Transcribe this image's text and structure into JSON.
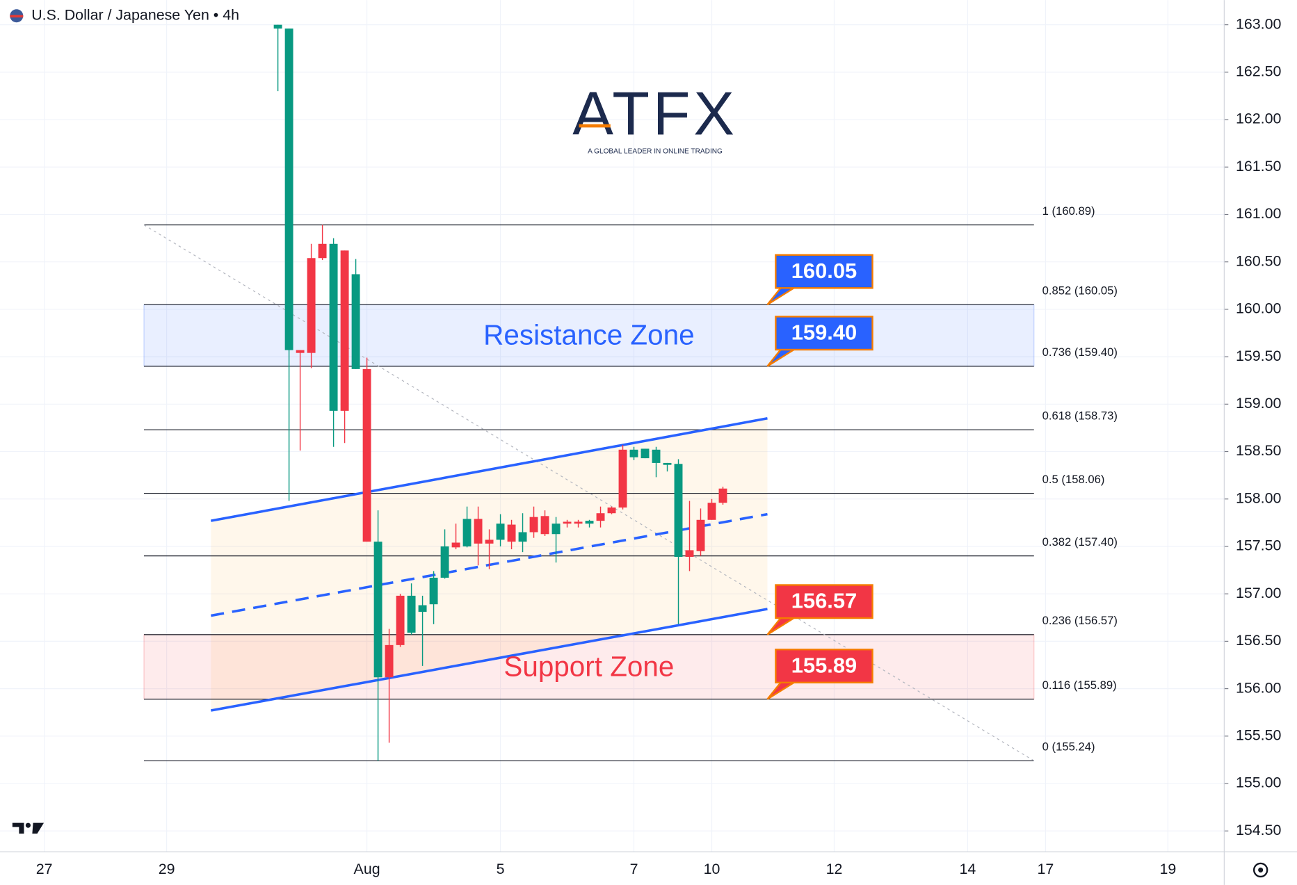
{
  "chart_data": {
    "type": "candlestick",
    "title": "U.S. Dollar / Japanese Yen • 4h",
    "logo": {
      "name": "ATFX",
      "tagline": "A GLOBAL LEADER IN ONLINE TRADING"
    },
    "up_color": "#089981",
    "down_color": "#f23645",
    "x": [
      0,
      1,
      2,
      3,
      4,
      5,
      6,
      7,
      8,
      9,
      10,
      11,
      12,
      13,
      14,
      15,
      16,
      17,
      18,
      19,
      20,
      21,
      22,
      23,
      24,
      25,
      26,
      27,
      28,
      29,
      30,
      31,
      32,
      33,
      34,
      35,
      36,
      37,
      38,
      39,
      40
    ],
    "open": [
      162.96,
      159.57,
      159.57,
      160.54,
      160.69,
      158.93,
      160.62,
      159.37,
      159.37,
      156.12,
      156.46,
      156.98,
      156.59,
      156.81,
      156.89,
      157.17,
      157.54,
      157.5,
      157.79,
      157.57,
      157.57,
      157.73,
      157.55,
      157.81,
      157.82,
      157.63,
      157.76,
      157.76,
      157.74,
      157.85,
      157.91,
      158.52,
      158.44,
      158.43,
      158.38,
      158.36,
      157.39,
      157.46,
      157.78,
      157.96,
      158.11
    ],
    "high": [
      163.0,
      162.96,
      159.57,
      160.69,
      160.89,
      160.75,
      160.62,
      160.53,
      159.49,
      157.88,
      156.63,
      157.0,
      157.11,
      156.98,
      157.24,
      157.68,
      157.74,
      157.92,
      157.92,
      157.68,
      157.84,
      157.78,
      157.85,
      157.92,
      157.88,
      157.81,
      157.78,
      157.78,
      157.78,
      157.92,
      157.92,
      158.57,
      158.55,
      158.53,
      158.55,
      158.38,
      158.42,
      157.98,
      157.9,
      158.0,
      158.13
    ],
    "low": [
      162.3,
      157.98,
      158.51,
      159.38,
      160.52,
      158.55,
      158.59,
      159.37,
      157.55,
      155.24,
      155.43,
      156.44,
      156.57,
      156.24,
      156.68,
      157.16,
      157.47,
      157.49,
      157.3,
      157.26,
      157.5,
      157.47,
      157.44,
      157.59,
      157.61,
      157.33,
      157.7,
      157.7,
      157.7,
      157.7,
      157.84,
      157.89,
      158.41,
      158.43,
      158.23,
      158.29,
      156.68,
      157.24,
      157.4,
      157.78,
      157.94
    ],
    "close": [
      163.0,
      162.96,
      159.54,
      159.54,
      160.54,
      160.69,
      158.93,
      160.37,
      157.55,
      157.55,
      156.12,
      156.46,
      156.98,
      156.88,
      157.17,
      157.5,
      157.49,
      157.79,
      157.53,
      157.53,
      157.74,
      157.55,
      157.65,
      157.65,
      157.63,
      157.74,
      157.74,
      157.74,
      157.77,
      157.77,
      157.85,
      157.91,
      158.52,
      158.53,
      158.52,
      158.38,
      158.37,
      157.39,
      157.45,
      157.78,
      157.96
    ],
    "xlim": [
      -24.98,
      85.06
    ],
    "xticks": [
      {
        "value": -21,
        "label": "27"
      },
      {
        "value": -10,
        "label": "29"
      },
      {
        "value": 8,
        "label": "Aug"
      },
      {
        "value": 20,
        "label": "5"
      },
      {
        "value": 32,
        "label": "7"
      },
      {
        "value": 39,
        "label": "10"
      },
      {
        "value": 50,
        "label": "12"
      },
      {
        "value": 62,
        "label": "14"
      },
      {
        "value": 69,
        "label": "17"
      },
      {
        "value": 80,
        "label": "19"
      }
    ],
    "ylim": [
      154.28,
      163.26
    ],
    "yticks": [
      {
        "value": 154.5,
        "label": "154.50"
      },
      {
        "value": 155,
        "label": "155.00"
      },
      {
        "value": 155.5,
        "label": "155.50"
      },
      {
        "value": 156,
        "label": "156.00"
      },
      {
        "value": 156.5,
        "label": "156.50"
      },
      {
        "value": 157,
        "label": "157.00"
      },
      {
        "value": 157.5,
        "label": "157.50"
      },
      {
        "value": 158,
        "label": "158.00"
      },
      {
        "value": 158.5,
        "label": "158.50"
      },
      {
        "value": 159,
        "label": "159.00"
      },
      {
        "value": 159.5,
        "label": "159.50"
      },
      {
        "value": 160,
        "label": "160.00"
      },
      {
        "value": 160.5,
        "label": "160.50"
      },
      {
        "value": 161,
        "label": "161.00"
      },
      {
        "value": 161.5,
        "label": "161.50"
      },
      {
        "value": 162,
        "label": "162.00"
      },
      {
        "value": 162.5,
        "label": "162.50"
      },
      {
        "value": 163,
        "label": "163.00"
      }
    ],
    "grid": true,
    "fib_x": [
      -12.04,
      67.96
    ],
    "fib_levels": [
      {
        "value": 160.89,
        "label": "1 (160.89)"
      },
      {
        "value": 160.05,
        "label": "0.852 (160.05)"
      },
      {
        "value": 159.4,
        "label": "0.736 (159.40)"
      },
      {
        "value": 158.73,
        "label": "0.618 (158.73)"
      },
      {
        "value": 158.06,
        "label": "0.5 (158.06)"
      },
      {
        "value": 157.4,
        "label": "0.382 (157.40)"
      },
      {
        "value": 156.57,
        "label": "0.236 (156.57)"
      },
      {
        "value": 155.89,
        "label": "0.116 (155.89)"
      },
      {
        "value": 155.24,
        "label": "0 (155.24)"
      }
    ],
    "zones": [
      {
        "label": "Resistance Zone",
        "range": [
          159.4,
          160.05
        ],
        "color": "#2962ff"
      },
      {
        "label": "Support Zone",
        "range": [
          155.89,
          156.57
        ],
        "color": "#f23645"
      }
    ],
    "callouts": [
      {
        "value": 160.05,
        "label": "160.05",
        "color": "#2962ff"
      },
      {
        "value": 159.4,
        "label": "159.40",
        "color": "#2962ff"
      },
      {
        "value": 156.57,
        "label": "156.57",
        "color": "#f23645"
      },
      {
        "value": 155.89,
        "label": "155.89",
        "color": "#f23645"
      }
    ],
    "channel_color": "#2962ff",
    "channels": [
      {
        "points": [
          [
            -6.02,
            157.77
          ],
          [
            44.0,
            158.85
          ]
        ],
        "style": "solid"
      },
      {
        "points": [
          [
            -6.02,
            156.77
          ],
          [
            44.0,
            157.84
          ]
        ],
        "style": "dashed"
      },
      {
        "points": [
          [
            -6.02,
            155.77
          ],
          [
            44.0,
            156.84
          ]
        ],
        "style": "solid"
      }
    ]
  }
}
